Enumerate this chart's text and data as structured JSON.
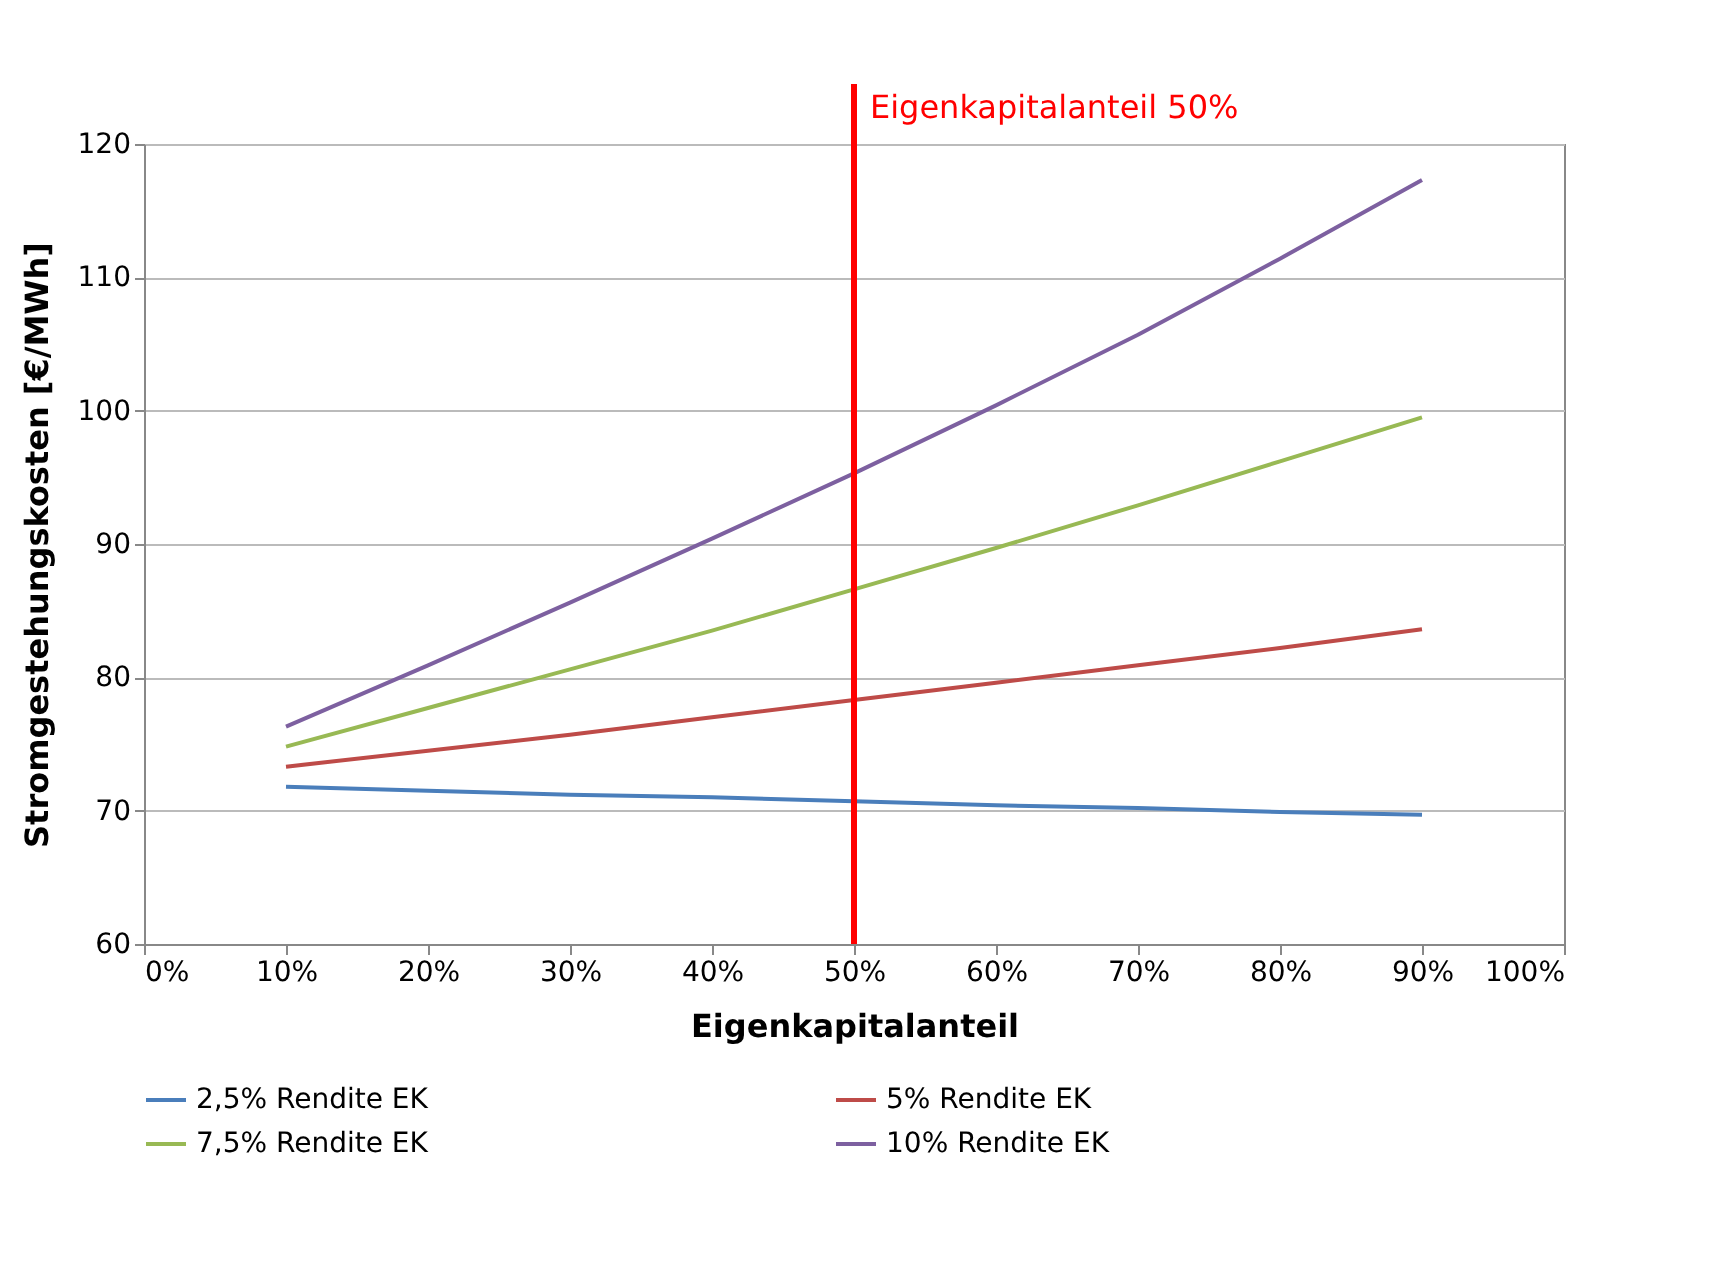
{
  "chart_data": {
    "type": "line",
    "xlabel": "Eigenkapitalanteil",
    "ylabel": "Stromgestehungskosten [€/MWh]",
    "x": [
      10,
      20,
      30,
      40,
      50,
      60,
      70,
      80,
      90
    ],
    "xlim": [
      0,
      100
    ],
    "xticks": [
      {
        "value": 0,
        "label": "0%"
      },
      {
        "value": 10,
        "label": "10%"
      },
      {
        "value": 20,
        "label": "20%"
      },
      {
        "value": 30,
        "label": "30%"
      },
      {
        "value": 40,
        "label": "40%"
      },
      {
        "value": 50,
        "label": "50%"
      },
      {
        "value": 60,
        "label": "60%"
      },
      {
        "value": 70,
        "label": "70%"
      },
      {
        "value": 80,
        "label": "80%"
      },
      {
        "value": 90,
        "label": "90%"
      },
      {
        "value": 100,
        "label": "100%"
      }
    ],
    "ylim": [
      60,
      120
    ],
    "yticks": [
      60,
      70,
      80,
      90,
      100,
      110,
      120
    ],
    "grid": "y",
    "legend": "bottom",
    "marker": "none",
    "line_style": "solid",
    "series": [
      {
        "name": "2,5% Rendite EK",
        "color": "#4a7ebb",
        "values": [
          71.8,
          71.5,
          71.2,
          71.0,
          70.7,
          70.4,
          70.2,
          69.9,
          69.7
        ]
      },
      {
        "name": "5% Rendite EK",
        "color": "#be4b48",
        "values": [
          73.3,
          74.5,
          75.7,
          77.0,
          78.3,
          79.6,
          80.9,
          82.2,
          83.6
        ]
      },
      {
        "name": "7,5% Rendite EK",
        "color": "#98b954",
        "values": [
          74.8,
          77.7,
          80.6,
          83.5,
          86.6,
          89.7,
          92.9,
          96.2,
          99.5
        ]
      },
      {
        "name": "10% Rendite EK",
        "color": "#7d60a0",
        "values": [
          76.3,
          80.9,
          85.6,
          90.4,
          95.3,
          100.4,
          105.7,
          111.4,
          117.3
        ]
      }
    ],
    "ref_lines": [
      {
        "axis": "x",
        "value": 50,
        "label": "Eigenkapitalanteil 50%",
        "color": "#ff0000",
        "line_style": "solid"
      }
    ]
  }
}
